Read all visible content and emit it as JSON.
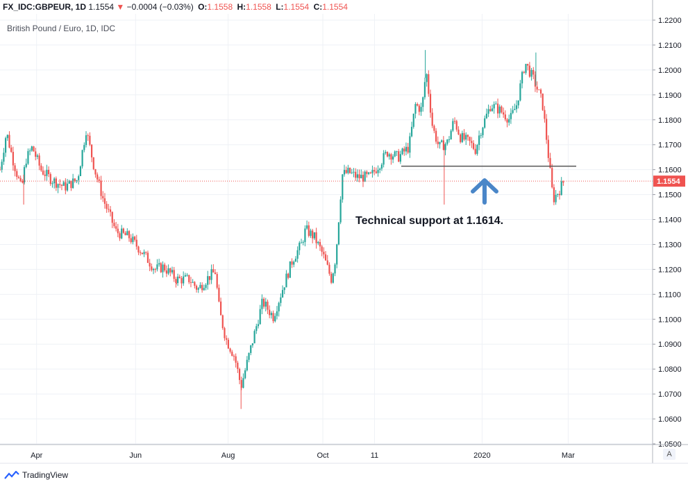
{
  "header": {
    "symbol": "FX_IDC:GBPEUR, 1D",
    "last": "1.1554",
    "change": "−0.0004 (−0.03%)",
    "open_label": "O:",
    "open": "1.1558",
    "high_label": "H:",
    "high": "1.1558",
    "low_label": "L:",
    "low": "1.1554",
    "close_label": "C:",
    "close": "1.1554"
  },
  "subtitle": "British Pound / Euro, 1D, IDC",
  "annotation": "Technical support at 1.1614.",
  "footer": {
    "brand": "TradingView",
    "auto_label": "A"
  },
  "colors": {
    "up": "#26a69a",
    "down": "#ef5350",
    "grid": "#eef1f6",
    "price_tag": "#ef5350",
    "support_line": "#555555",
    "arrow": "#4a86c8"
  },
  "chart_data": {
    "type": "candlestick",
    "title": "British Pound / Euro, 1D, IDC",
    "ylim": [
      1.05,
      1.2225
    ],
    "y_ticks": [
      "1.2200",
      "1.2100",
      "1.2000",
      "1.1900",
      "1.1800",
      "1.1700",
      "1.1600",
      "1.1500",
      "1.1400",
      "1.1300",
      "1.1200",
      "1.1100",
      "1.1000",
      "1.0900",
      "1.0800",
      "1.0700",
      "1.0600",
      "1.0500"
    ],
    "x_ticks": [
      "Apr",
      "Jun",
      "Aug",
      "Oct",
      "11",
      "2020",
      "Mar"
    ],
    "x_tick_positions": [
      0.085,
      0.315,
      0.53,
      0.75,
      0.87,
      1.12,
      1.32
    ],
    "current_price": 1.1554,
    "current_price_label": "1.1554",
    "support_level": 1.1614,
    "anchors": [
      [
        0.0,
        1.16
      ],
      [
        0.015,
        1.175
      ],
      [
        0.03,
        1.164
      ],
      [
        0.05,
        1.152
      ],
      [
        0.06,
        1.164
      ],
      [
        0.075,
        1.169
      ],
      [
        0.095,
        1.16
      ],
      [
        0.12,
        1.156
      ],
      [
        0.15,
        1.153
      ],
      [
        0.18,
        1.156
      ],
      [
        0.2,
        1.176
      ],
      [
        0.22,
        1.16
      ],
      [
        0.24,
        1.148
      ],
      [
        0.27,
        1.135
      ],
      [
        0.3,
        1.133
      ],
      [
        0.33,
        1.127
      ],
      [
        0.36,
        1.12
      ],
      [
        0.38,
        1.121
      ],
      [
        0.41,
        1.116
      ],
      [
        0.44,
        1.116
      ],
      [
        0.46,
        1.112
      ],
      [
        0.485,
        1.117
      ],
      [
        0.5,
        1.119
      ],
      [
        0.51,
        1.103
      ],
      [
        0.525,
        1.092
      ],
      [
        0.545,
        1.085
      ],
      [
        0.56,
        1.073
      ],
      [
        0.585,
        1.09
      ],
      [
        0.61,
        1.107
      ],
      [
        0.635,
        1.101
      ],
      [
        0.66,
        1.114
      ],
      [
        0.68,
        1.124
      ],
      [
        0.7,
        1.13
      ],
      [
        0.71,
        1.136
      ],
      [
        0.73,
        1.133
      ],
      [
        0.75,
        1.126
      ],
      [
        0.77,
        1.116
      ],
      [
        0.78,
        1.125
      ],
      [
        0.795,
        1.158
      ],
      [
        0.81,
        1.159
      ],
      [
        0.83,
        1.157
      ],
      [
        0.86,
        1.157
      ],
      [
        0.88,
        1.162
      ],
      [
        0.9,
        1.167
      ],
      [
        0.925,
        1.165
      ],
      [
        0.95,
        1.169
      ],
      [
        0.965,
        1.186
      ],
      [
        0.98,
        1.184
      ],
      [
        0.99,
        1.2
      ],
      [
        1.005,
        1.177
      ],
      [
        1.02,
        1.169
      ],
      [
        1.04,
        1.171
      ],
      [
        1.055,
        1.18
      ],
      [
        1.07,
        1.173
      ],
      [
        1.09,
        1.171
      ],
      [
        1.105,
        1.168
      ],
      [
        1.115,
        1.175
      ],
      [
        1.14,
        1.186
      ],
      [
        1.16,
        1.184
      ],
      [
        1.185,
        1.18
      ],
      [
        1.2,
        1.186
      ],
      [
        1.22,
        1.203
      ],
      [
        1.24,
        1.196
      ],
      [
        1.26,
        1.187
      ],
      [
        1.27,
        1.172
      ],
      [
        1.285,
        1.148
      ],
      [
        1.3,
        1.152
      ],
      [
        1.31,
        1.1554
      ]
    ],
    "spikes": [
      [
        0.055,
        1.146,
        "low"
      ],
      [
        0.41,
        1.114,
        "low"
      ],
      [
        0.56,
        1.064,
        "low"
      ],
      [
        0.988,
        1.208,
        "high"
      ],
      [
        1.032,
        1.146,
        "low"
      ],
      [
        1.245,
        1.207,
        "high"
      ]
    ]
  }
}
